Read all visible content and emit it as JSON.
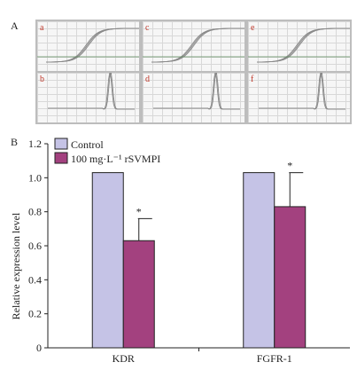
{
  "panel_a_label": "A",
  "panel_b_label": "B",
  "panel_a_curves": [
    {
      "letter": "a",
      "kind": "amplification"
    },
    {
      "letter": "c",
      "kind": "amplification"
    },
    {
      "letter": "e",
      "kind": "amplification"
    },
    {
      "letter": "b",
      "kind": "melting"
    },
    {
      "letter": "d",
      "kind": "melting"
    },
    {
      "letter": "f",
      "kind": "melting"
    }
  ],
  "colors": {
    "control": "#c5c3e6",
    "treated": "#a3417f",
    "edge": "#222222"
  },
  "chart_data": {
    "type": "bar",
    "categories": [
      "KDR",
      "FGFR-1"
    ],
    "series": [
      {
        "name": "Control",
        "values": [
          1.03,
          1.03
        ],
        "errors": [
          0,
          0
        ]
      },
      {
        "name": "100 mg·L⁻¹ rSVMPI",
        "values": [
          0.63,
          0.83
        ],
        "errors": [
          0.13,
          0.2
        ],
        "significance": [
          "*",
          "*"
        ]
      }
    ],
    "ylabel": "Relative expression level",
    "ylim": [
      0,
      1.2
    ],
    "yticks": [
      "0",
      "0.2",
      "0.4",
      "0.6",
      "0.8",
      "1.0",
      "1.2"
    ],
    "legend_position": "top-left",
    "grid": false
  }
}
